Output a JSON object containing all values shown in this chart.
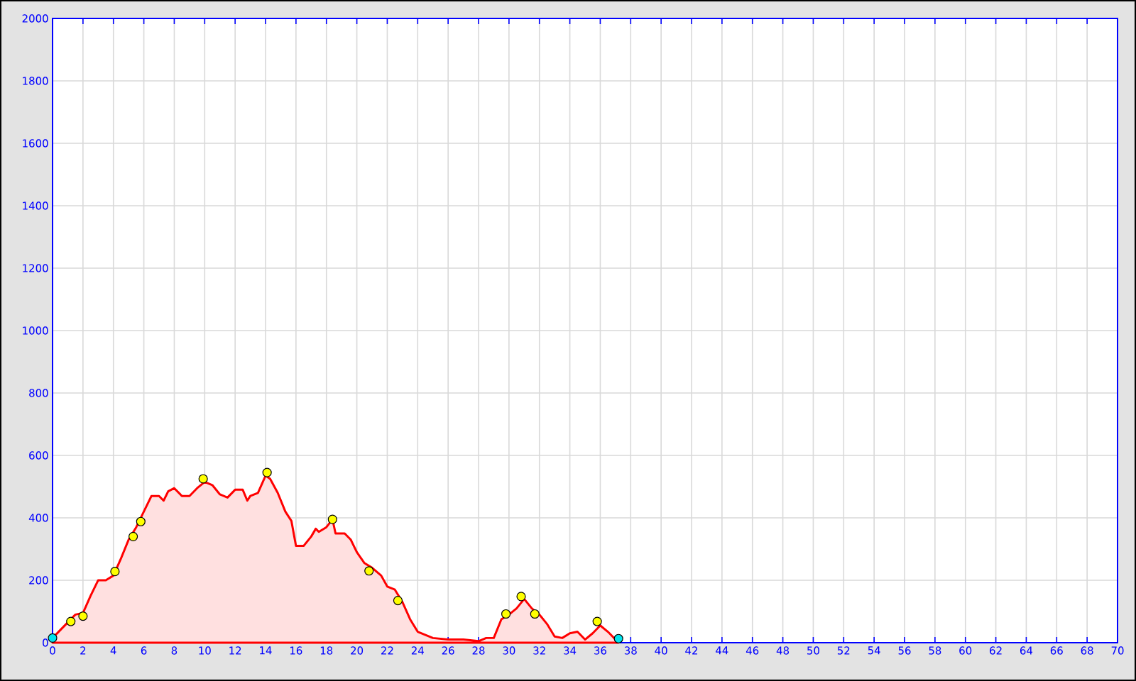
{
  "chart_data": {
    "type": "area",
    "xlim": [
      0,
      70
    ],
    "ylim": [
      0,
      2000
    ],
    "xticks": [
      0,
      2,
      4,
      6,
      8,
      10,
      12,
      14,
      16,
      18,
      20,
      22,
      24,
      26,
      28,
      30,
      32,
      34,
      36,
      38,
      40,
      42,
      44,
      46,
      48,
      50,
      52,
      54,
      56,
      58,
      60,
      62,
      64,
      66,
      68,
      70
    ],
    "yticks": [
      0,
      200,
      400,
      600,
      800,
      1000,
      1200,
      1400,
      1600,
      1800,
      2000
    ],
    "grid": true,
    "series": [
      {
        "marker": "none",
        "color": "#ff0000",
        "x": [
          0,
          0.5,
          1,
          1.5,
          2,
          2.5,
          3,
          3.5,
          4,
          4.5,
          5,
          5.5,
          6,
          6.5,
          7,
          7.3,
          7.6,
          8,
          8.5,
          9,
          9.5,
          10,
          10.5,
          11,
          11.5,
          12,
          12.5,
          12.8,
          13,
          13.5,
          14,
          14.3,
          14.8,
          15.3,
          15.7,
          16,
          16.5,
          17,
          17.3,
          17.5,
          18,
          18.4,
          18.6,
          19.2,
          19.6,
          20,
          20.5,
          21,
          21.6,
          22,
          22.5,
          23,
          23.5,
          24,
          25,
          26,
          27,
          28,
          28.5,
          29,
          29.5,
          30,
          30.5,
          31,
          31.5,
          32,
          32.5,
          33,
          33.5,
          34,
          34.5,
          35,
          35.5,
          36,
          36.5,
          37,
          37.2
        ],
        "values": [
          15,
          40,
          65,
          90,
          95,
          150,
          200,
          200,
          215,
          270,
          330,
          370,
          420,
          470,
          470,
          455,
          485,
          495,
          470,
          470,
          495,
          515,
          505,
          475,
          465,
          490,
          490,
          455,
          470,
          480,
          535,
          525,
          480,
          420,
          390,
          310,
          310,
          340,
          365,
          355,
          370,
          395,
          350,
          350,
          330,
          290,
          255,
          240,
          215,
          180,
          170,
          130,
          75,
          35,
          15,
          10,
          10,
          5,
          15,
          15,
          75,
          90,
          110,
          140,
          110,
          90,
          60,
          20,
          15,
          30,
          35,
          10,
          30,
          55,
          35,
          10,
          13
        ]
      },
      {
        "type": "scatter",
        "marker": "circle",
        "color": "#ffff00",
        "x": [
          1.2,
          2,
          4.1,
          5.3,
          5.8,
          9.9,
          14.1,
          18.4,
          20.8,
          22.7,
          29.8,
          30.8,
          31.7,
          35.8
        ],
        "values": [
          68,
          85,
          228,
          340,
          388,
          525,
          545,
          395,
          230,
          135,
          92,
          148,
          92,
          68
        ]
      },
      {
        "type": "scatter",
        "marker": "circle",
        "color": "#00e5ee",
        "x": [
          0,
          37.2
        ],
        "values": [
          15,
          13
        ]
      }
    ]
  }
}
